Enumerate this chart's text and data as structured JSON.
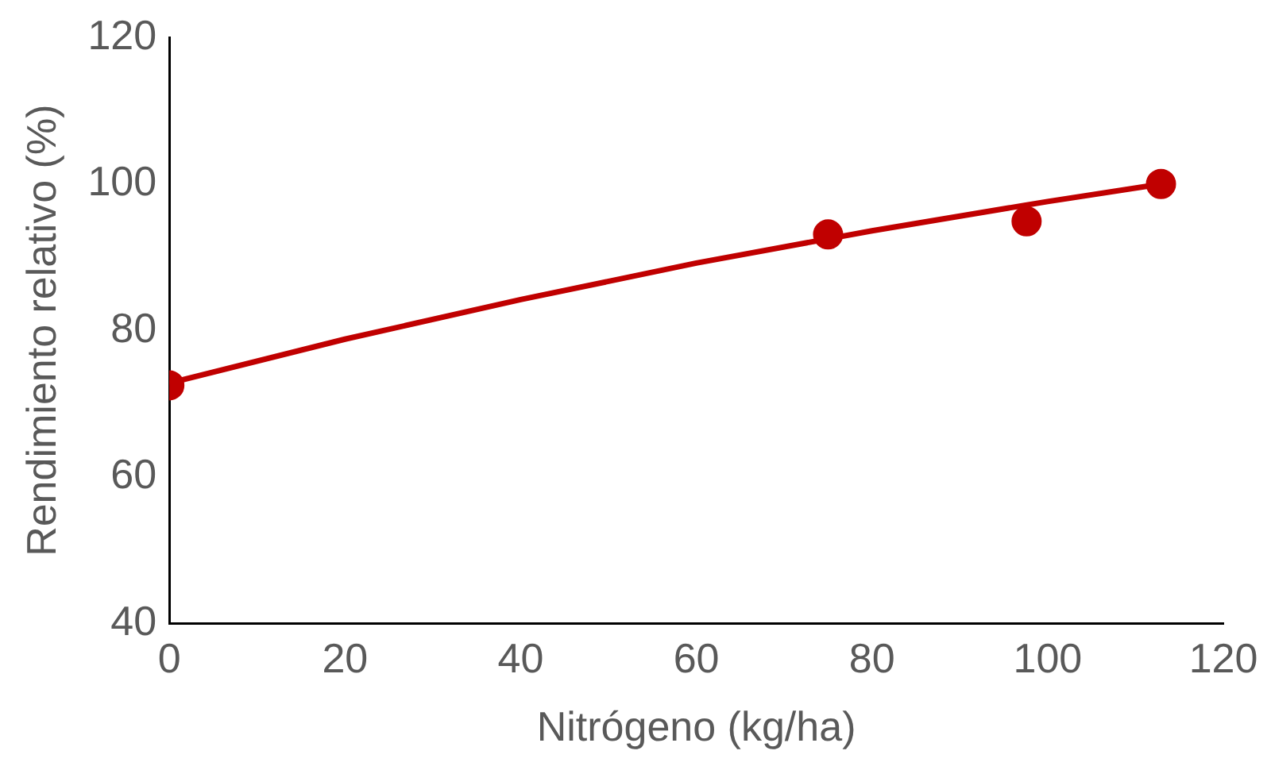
{
  "chart_data": {
    "type": "scatter",
    "xlabel": "Nitrógeno (kg/ha)",
    "ylabel": "Rendimiento relativo (%)",
    "xlim": [
      0,
      120
    ],
    "xticks": [
      0,
      20,
      40,
      60,
      80,
      100,
      120
    ],
    "ylim": [
      40,
      120
    ],
    "yticks": [
      40,
      60,
      80,
      100,
      120
    ],
    "grid": false,
    "legend": false,
    "marker": "circle",
    "series": [
      {
        "color": "#c00000",
        "x": [
          0,
          75,
          97.6,
          112.9
        ],
        "values": [
          72.5,
          93.1,
          94.9,
          100
        ]
      },
      {
        "type": "line",
        "color": "#c00000",
        "marker": "none",
        "line_style": "solid",
        "x": [
          0,
          20,
          40,
          60,
          80,
          100,
          113
        ],
        "values": [
          72.8,
          78.8,
          84.2,
          89.2,
          93.6,
          97.6,
          100
        ]
      }
    ]
  }
}
